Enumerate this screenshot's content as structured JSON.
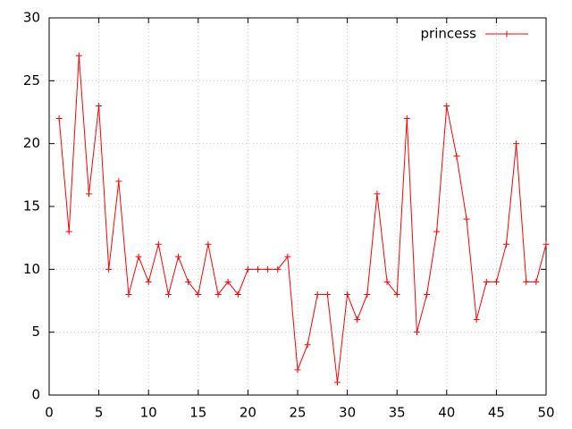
{
  "chart_data": {
    "type": "line",
    "x": [
      1,
      2,
      3,
      4,
      5,
      6,
      7,
      8,
      9,
      10,
      11,
      12,
      13,
      14,
      15,
      16,
      17,
      18,
      19,
      20,
      21,
      22,
      23,
      24,
      25,
      26,
      27,
      28,
      29,
      30,
      31,
      32,
      33,
      34,
      35,
      36,
      37,
      38,
      39,
      40,
      41,
      42,
      43,
      44,
      45,
      46,
      47,
      48,
      49,
      50
    ],
    "series": [
      {
        "name": "princess",
        "color": "#ff0000",
        "values": [
          22,
          13,
          27,
          16,
          23,
          10,
          17,
          8,
          11,
          9,
          12,
          8,
          11,
          9,
          8,
          12,
          8,
          9,
          8,
          10,
          10,
          10,
          10,
          11,
          2,
          4,
          8,
          8,
          1,
          8,
          6,
          8,
          16,
          9,
          8,
          22,
          5,
          8,
          13,
          23,
          19,
          14,
          6,
          9,
          9,
          12,
          20,
          9,
          9,
          12
        ]
      }
    ],
    "xlim": [
      0,
      50
    ],
    "xticks": [
      0,
      5,
      10,
      15,
      20,
      25,
      30,
      35,
      40,
      45,
      50
    ],
    "ylim": [
      0,
      30
    ],
    "yticks": [
      0,
      5,
      10,
      15,
      20,
      25,
      30
    ],
    "grid": true,
    "legend": "top-right"
  }
}
